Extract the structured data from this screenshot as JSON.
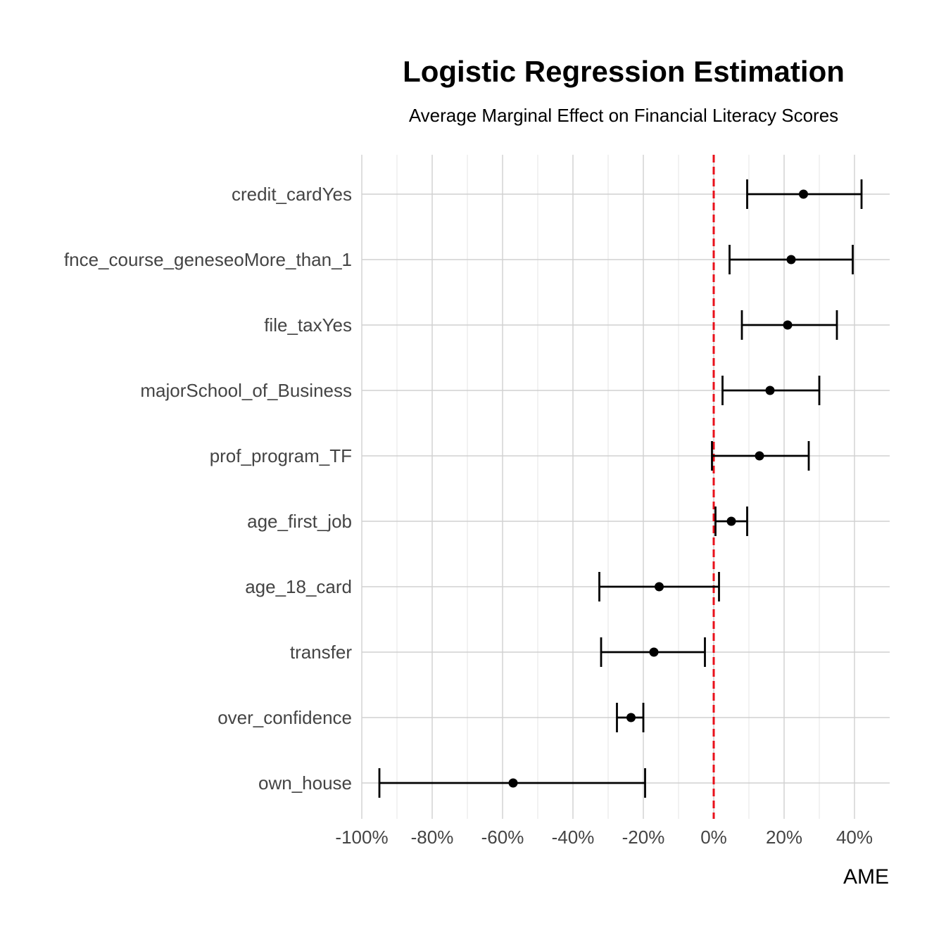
{
  "chart_data": {
    "type": "scatter",
    "title": "Logistic Regression Estimation",
    "subtitle": "Average Marginal Effect on Financial Literacy Scores",
    "xlabel": "AME",
    "ylabel": "",
    "xlim": [
      -100,
      50
    ],
    "x_ticks": [
      -100,
      -80,
      -60,
      -40,
      -20,
      0,
      20,
      40
    ],
    "x_tick_labels": [
      "-100%",
      "-80%",
      "-60%",
      "-40%",
      "-20%",
      "0%",
      "20%",
      "40%"
    ],
    "x_minor_ticks": [
      -90,
      -70,
      -50,
      -30,
      -10,
      10,
      30
    ],
    "grid": true,
    "reference_line": {
      "x": 0,
      "color": "#e8101a",
      "style": "dashed"
    },
    "point_color": "#000000",
    "categories": [
      "credit_cardYes",
      "fnce_course_geneseoMore_than_1",
      "file_taxYes",
      "majorSchool_of_Business",
      "prof_program_TF",
      "age_first_job",
      "age_18_card",
      "transfer",
      "over_confidence",
      "own_house"
    ],
    "estimates": [
      25.5,
      22,
      21,
      16,
      13,
      5,
      -15.5,
      -17,
      -23.5,
      -57
    ],
    "lower": [
      9.5,
      4.5,
      8,
      2.5,
      -0.5,
      0.5,
      -32.5,
      -32,
      -27.5,
      -95
    ],
    "upper": [
      42,
      39.5,
      35,
      30,
      27,
      9.5,
      1.5,
      -2.5,
      -20,
      -19.5
    ]
  }
}
